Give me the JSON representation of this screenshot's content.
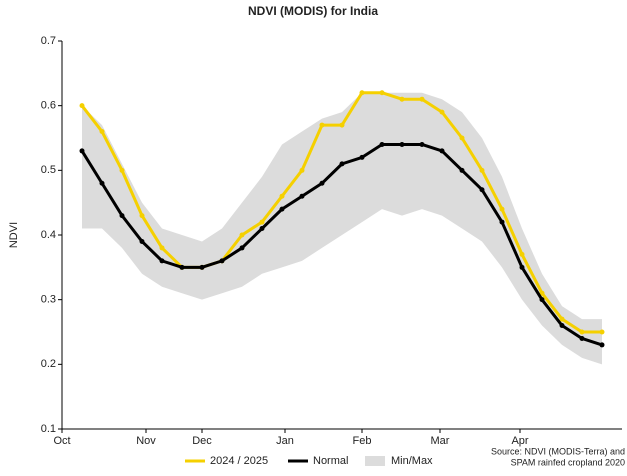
{
  "chart_data": {
    "type": "line",
    "title": "NDVI (MODIS) for India",
    "y_label": "NDVI",
    "source": [
      "Source: NDVI (MODIS-Terra) and",
      "SPAM rainfed cropland 2020"
    ],
    "x": [
      0,
      1,
      2,
      3,
      4,
      5,
      6,
      7,
      8,
      9,
      10,
      11,
      12,
      13,
      14,
      15,
      16,
      17,
      18,
      19,
      20,
      21,
      22,
      23,
      24,
      25,
      26
    ],
    "xlim": [
      -1,
      27
    ],
    "xticks": [
      {
        "value": -1,
        "label": "Oct"
      },
      {
        "value": 3.2,
        "label": "Nov"
      },
      {
        "value": 6,
        "label": "Dec"
      },
      {
        "value": 10.15,
        "label": "Jan"
      },
      {
        "value": 14,
        "label": "Feb"
      },
      {
        "value": 17.9,
        "label": "Mar"
      },
      {
        "value": 21.9,
        "label": "Apr"
      }
    ],
    "ylim": [
      0.1,
      0.7
    ],
    "yticks": [
      0.1,
      0.2,
      0.3,
      0.4,
      0.5,
      0.6,
      0.7
    ],
    "band": {
      "name": "Min/Max",
      "color": "#dcdcdc",
      "min": [
        0.41,
        0.41,
        0.38,
        0.34,
        0.32,
        0.31,
        0.3,
        0.31,
        0.32,
        0.34,
        0.35,
        0.36,
        0.38,
        0.4,
        0.42,
        0.44,
        0.43,
        0.44,
        0.43,
        0.41,
        0.39,
        0.35,
        0.3,
        0.26,
        0.23,
        0.21,
        0.2
      ],
      "max": [
        0.6,
        0.57,
        0.51,
        0.45,
        0.41,
        0.4,
        0.39,
        0.41,
        0.45,
        0.49,
        0.54,
        0.56,
        0.58,
        0.59,
        0.62,
        0.62,
        0.62,
        0.62,
        0.61,
        0.59,
        0.55,
        0.49,
        0.41,
        0.34,
        0.29,
        0.27,
        0.27
      ]
    },
    "series": [
      {
        "name": "2024 / 2025",
        "color": "#f5d000",
        "values": [
          0.6,
          0.56,
          0.5,
          0.43,
          0.38,
          0.35,
          0.35,
          0.36,
          0.4,
          0.42,
          0.46,
          0.5,
          0.57,
          0.57,
          0.62,
          0.62,
          0.61,
          0.61,
          0.59,
          0.55,
          0.5,
          0.44,
          0.37,
          0.31,
          0.27,
          0.25,
          0.25
        ]
      },
      {
        "name": "Normal",
        "color": "#000000",
        "values": [
          0.53,
          0.48,
          0.43,
          0.39,
          0.36,
          0.35,
          0.35,
          0.36,
          0.38,
          0.41,
          0.44,
          0.46,
          0.48,
          0.51,
          0.52,
          0.54,
          0.54,
          0.54,
          0.53,
          0.5,
          0.47,
          0.42,
          0.35,
          0.3,
          0.26,
          0.24,
          0.23
        ]
      }
    ]
  }
}
